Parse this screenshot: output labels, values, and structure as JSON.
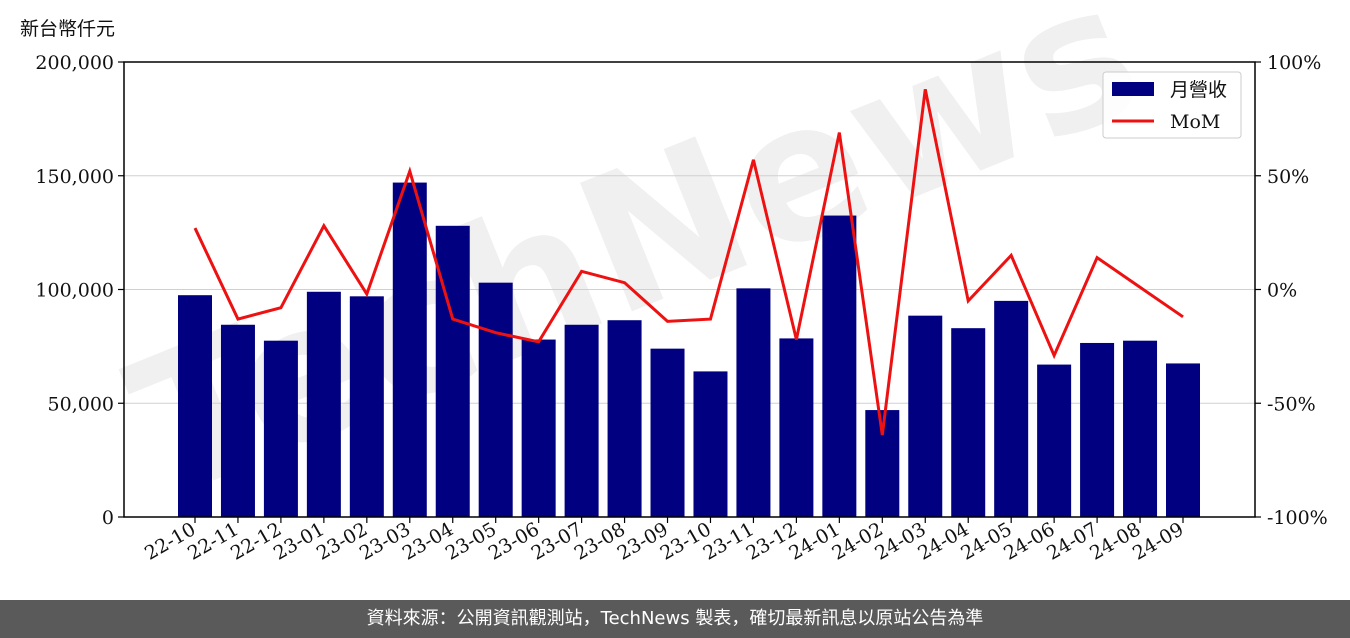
{
  "unit_label": "新台幣仟元",
  "footer_text": "資料來源：公開資訊觀測站，TechNews 製表，確切最新訊息以原站公告為準",
  "watermark_text": "TechNews",
  "colors": {
    "bar": "#000080",
    "line": "#ee1111",
    "grid": "#d0d0d0",
    "watermark": "#c8c8c8"
  },
  "chart_data": {
    "type": "bar",
    "categories": [
      "22-10",
      "22-11",
      "22-12",
      "23-01",
      "23-02",
      "23-03",
      "23-04",
      "23-05",
      "23-06",
      "23-07",
      "23-08",
      "23-09",
      "23-10",
      "23-11",
      "23-12",
      "24-01",
      "24-02",
      "24-03",
      "24-04",
      "24-05",
      "24-06",
      "24-07",
      "24-08",
      "24-09"
    ],
    "series": [
      {
        "name": "月營收",
        "type": "bar",
        "axis": "left",
        "values": [
          97500,
          84500,
          77500,
          99000,
          97000,
          147000,
          128000,
          103000,
          78000,
          84500,
          86500,
          74000,
          64000,
          100500,
          78500,
          132500,
          47000,
          88500,
          83000,
          95000,
          67000,
          76500,
          77500,
          67500
        ]
      },
      {
        "name": "MoM",
        "type": "line",
        "axis": "right",
        "values": [
          27,
          -13,
          -8,
          28,
          -2,
          52,
          -13,
          -19,
          -23,
          8,
          3,
          -14,
          -13,
          57,
          -22,
          69,
          -64,
          88,
          -5,
          15,
          -29,
          14,
          1,
          -12
        ]
      }
    ],
    "y_left": {
      "ylim": [
        0,
        200000
      ],
      "ticks": [
        "0",
        "50,000",
        "100,000",
        "150,000",
        "200,000"
      ]
    },
    "y_right": {
      "ylim": [
        -100,
        100
      ],
      "ticks": [
        "-100%",
        "-50%",
        "0%",
        "50%",
        "100%"
      ]
    },
    "grid": true,
    "legend_position": "top-right"
  }
}
